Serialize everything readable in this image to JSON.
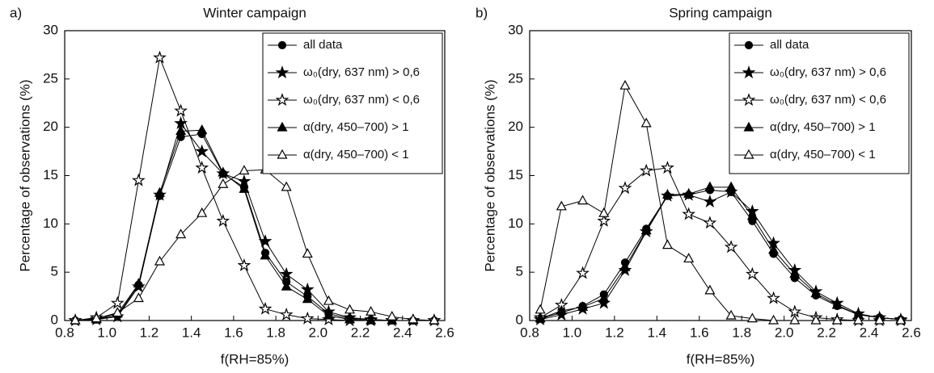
{
  "chart_data": [
    {
      "type": "line",
      "panel_label": "a)",
      "title": "Winter campaign",
      "xlabel": "f(RH=85%)",
      "ylabel": "Percentage of observations (%)",
      "x": [
        0.85,
        0.95,
        1.05,
        1.15,
        1.25,
        1.35,
        1.45,
        1.55,
        1.65,
        1.75,
        1.85,
        1.95,
        2.05,
        2.15,
        2.25,
        2.35,
        2.45,
        2.55
      ],
      "xlim": [
        0.8,
        2.6
      ],
      "xticks": [
        0.8,
        {
          "value": 1,
          "label": "1.0"
        },
        1.2,
        1.4,
        1.6,
        1.8,
        {
          "value": 2,
          "label": "2.0"
        },
        2.2,
        2.4,
        2.6
      ],
      "ylim": [
        0,
        30
      ],
      "yticks": [
        0,
        5,
        10,
        15,
        20,
        25,
        30
      ],
      "legend": "upper right",
      "series": [
        {
          "name": "all data",
          "color": "#000000",
          "marker": "circle",
          "values": [
            0,
            0.1,
            0.5,
            3.7,
            12.9,
            19,
            19.3,
            15.2,
            13.8,
            7,
            4,
            2.5,
            0.7,
            0.2,
            0.1,
            0,
            0,
            0
          ]
        },
        {
          "name": "ω₀(dry, 637 nm) > 0,6",
          "color": "#000000",
          "marker": "star",
          "values": [
            0,
            0.1,
            0.4,
            3.5,
            13,
            20.4,
            17.5,
            15.2,
            14.4,
            8.2,
            4.8,
            3.2,
            0.9,
            0.3,
            0.1,
            0,
            0,
            0
          ]
        },
        {
          "name": "ω₀(dry, 637 nm) < 0,6",
          "color": "#000000",
          "marker": "star-open",
          "values": [
            0,
            0.3,
            1.8,
            14.5,
            27.2,
            21.7,
            15.8,
            10.3,
            5.7,
            1.2,
            0.6,
            0.2,
            0.1,
            0,
            0,
            0,
            0,
            0
          ]
        },
        {
          "name": "α(dry, 450–700) > 1",
          "color": "#000000",
          "marker": "triangle",
          "values": [
            0,
            0.1,
            0.7,
            3.8,
            13.2,
            19.6,
            19.7,
            15.3,
            13.6,
            6.7,
            3.5,
            2.2,
            0.5,
            0.1,
            0,
            0,
            0,
            0
          ]
        },
        {
          "name": "α(dry, 450–700) < 1",
          "color": "#000000",
          "marker": "triangle-open",
          "values": [
            0,
            0.2,
            0.8,
            2.3,
            6.1,
            8.9,
            11.1,
            14.1,
            15.5,
            15.6,
            13.8,
            6.9,
            2,
            1.1,
            0.9,
            0.4,
            0.1,
            0
          ]
        }
      ]
    },
    {
      "type": "line",
      "panel_label": "b)",
      "title": "Spring campaign",
      "xlabel": "f(RH=85%)",
      "ylabel": "Percentage of observations (%)",
      "x": [
        0.85,
        0.95,
        1.05,
        1.15,
        1.25,
        1.35,
        1.45,
        1.55,
        1.65,
        1.75,
        1.85,
        1.95,
        2.05,
        2.15,
        2.25,
        2.35,
        2.45,
        2.55
      ],
      "xlim": [
        0.8,
        2.6
      ],
      "xticks": [
        0.8,
        {
          "value": 1,
          "label": "1.0"
        },
        1.2,
        1.4,
        1.6,
        1.8,
        {
          "value": 2,
          "label": "2.0"
        },
        2.2,
        2.4,
        2.6
      ],
      "ylim": [
        0,
        30
      ],
      "yticks": [
        0,
        5,
        10,
        15,
        20,
        25,
        30
      ],
      "legend": "upper right",
      "series": [
        {
          "name": "all data",
          "color": "#000000",
          "marker": "circle",
          "values": [
            0.2,
            0.8,
            1.5,
            2.7,
            6,
            9.5,
            12.9,
            13,
            13.5,
            13.3,
            10.3,
            6.9,
            4.4,
            2.6,
            1.5,
            0.6,
            0.3,
            0.1
          ]
        },
        {
          "name": "ω₀(dry, 637 nm) > 0,6",
          "color": "#000000",
          "marker": "star",
          "values": [
            0.1,
            0.6,
            1.2,
            1.8,
            5.2,
            9.2,
            12.9,
            13,
            12.3,
            13.3,
            11.3,
            8,
            5.2,
            3,
            1.8,
            0.7,
            0.3,
            0.1
          ]
        },
        {
          "name": "ω₀(dry, 637 nm) < 0,6",
          "color": "#000000",
          "marker": "star-open",
          "values": [
            0.3,
            1.6,
            4.9,
            10.3,
            13.7,
            15.5,
            15.8,
            11,
            10.1,
            7.6,
            4.8,
            2.3,
            0.9,
            0.3,
            0.1,
            0,
            0,
            0
          ]
        },
        {
          "name": "α(dry, 450–700) > 1",
          "color": "#000000",
          "marker": "triangle",
          "values": [
            0.2,
            1,
            1.4,
            2.3,
            5.5,
            9.3,
            13,
            13.1,
            13.8,
            13.8,
            10.8,
            7.3,
            4.8,
            2.8,
            1.6,
            0.6,
            0.3,
            0.1
          ]
        },
        {
          "name": "α(dry, 450–700) < 1",
          "color": "#000000",
          "marker": "triangle-open",
          "values": [
            1.1,
            11.8,
            12.4,
            11.1,
            24.3,
            20.4,
            7.8,
            6.4,
            3.1,
            0.5,
            0.2,
            0,
            0,
            0,
            0,
            0,
            0,
            0
          ]
        }
      ]
    }
  ]
}
